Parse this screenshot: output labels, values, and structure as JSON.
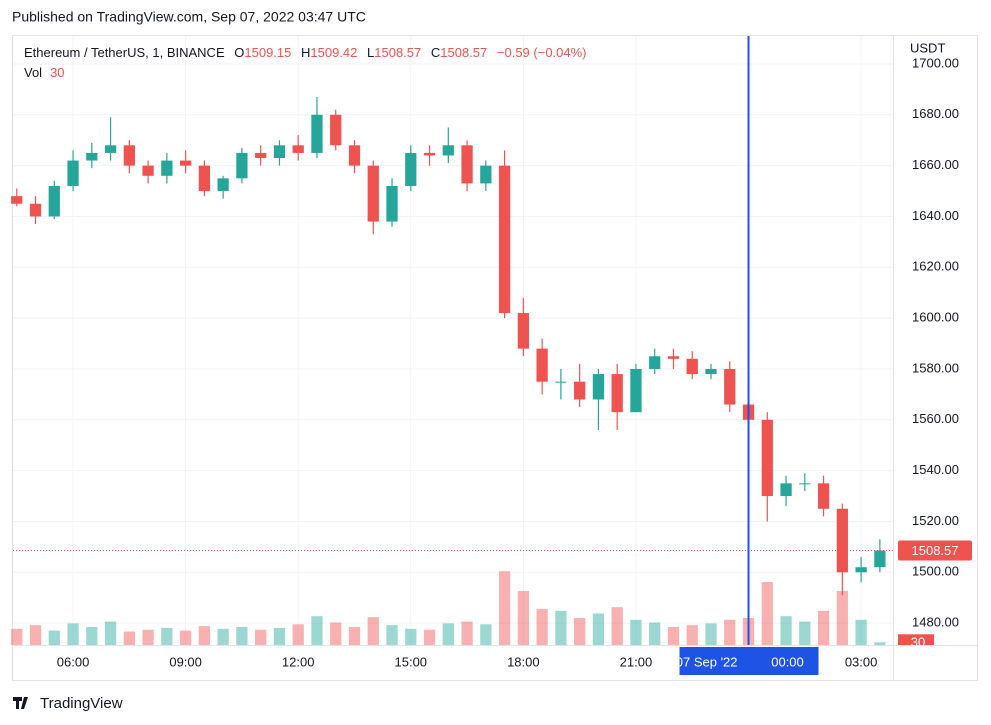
{
  "header": {
    "published": "Published on TradingView.com, Sep 07, 2022 03:47 UTC"
  },
  "footer": {
    "brand": "TradingView"
  },
  "chart_data": {
    "type": "candlestick",
    "symbol": "Ethereum / TetherUS, 1, BINANCE",
    "ohlc_legend": {
      "o_label": "O",
      "o": 1509.15,
      "h_label": "H",
      "h": 1509.42,
      "l_label": "L",
      "l": 1508.57,
      "c_label": "C",
      "c": 1508.57,
      "change": "−0.59 (−0.04%)"
    },
    "volume_label": "Vol",
    "volume_last": 30,
    "y_axis_title": "USDT",
    "last_price": 1508.57,
    "up_color": "#26a69a",
    "down_color": "#ef5350",
    "x": [
      4.5,
      5,
      5.5,
      6,
      6.5,
      7,
      7.5,
      8,
      8.5,
      9,
      9.5,
      10,
      10.5,
      11,
      11.5,
      12,
      12.5,
      13,
      13.5,
      14,
      14.5,
      15,
      15.5,
      16,
      16.5,
      17,
      17.5,
      18,
      18.5,
      19,
      19.5,
      20,
      20.5,
      21,
      21.5,
      22,
      22.5,
      23,
      23.5,
      24,
      24.5,
      25,
      25.5,
      26,
      26.5,
      27,
      27.5
    ],
    "open": [
      1648,
      1645,
      1640,
      1652,
      1662,
      1665,
      1668,
      1660,
      1656,
      1662,
      1660,
      1650,
      1655,
      1665,
      1663,
      1668,
      1665,
      1680,
      1668,
      1660,
      1638,
      1652,
      1665,
      1664,
      1668,
      1653,
      1660,
      1602,
      1588,
      1575,
      1575,
      1568,
      1578,
      1563,
      1580,
      1585,
      1584,
      1578,
      1580,
      1566,
      1560,
      1530,
      1535,
      1535,
      1525,
      1500,
      1502
    ],
    "high": [
      1651,
      1648,
      1654,
      1666,
      1669,
      1679,
      1670,
      1662,
      1665,
      1666,
      1662,
      1656,
      1667,
      1668,
      1670,
      1672,
      1687,
      1682,
      1670,
      1662,
      1655,
      1668,
      1668,
      1675,
      1670,
      1662,
      1666,
      1608,
      1592,
      1580,
      1582,
      1580,
      1582,
      1582,
      1588,
      1588,
      1587,
      1582,
      1583,
      1570,
      1563,
      1538,
      1539,
      1538,
      1527,
      1506,
      1513
    ],
    "low": [
      1644,
      1637,
      1639,
      1650,
      1659,
      1662,
      1657,
      1653,
      1653,
      1657,
      1648,
      1647,
      1653,
      1660,
      1660,
      1662,
      1663,
      1666,
      1657,
      1633,
      1636,
      1650,
      1660,
      1661,
      1650,
      1650,
      1600,
      1585,
      1570,
      1568,
      1565,
      1556,
      1556,
      1563,
      1578,
      1580,
      1576,
      1576,
      1563,
      1555,
      1520,
      1526,
      1532,
      1522,
      1491,
      1496,
      1500
    ],
    "close": [
      1645,
      1640,
      1652,
      1662,
      1665,
      1668,
      1660,
      1656,
      1662,
      1660,
      1650,
      1655,
      1665,
      1663,
      1668,
      1665,
      1680,
      1668,
      1660,
      1638,
      1652,
      1665,
      1664,
      1668,
      1653,
      1660,
      1602,
      1588,
      1575,
      1575,
      1568,
      1578,
      1563,
      1580,
      1585,
      1584,
      1578,
      1580,
      1566,
      1560,
      1530,
      1535,
      1535,
      1525,
      1500,
      1502,
      1508.57
    ],
    "volume": [
      180,
      220,
      160,
      240,
      200,
      260,
      150,
      170,
      190,
      160,
      210,
      180,
      200,
      170,
      190,
      230,
      320,
      250,
      200,
      310,
      220,
      180,
      170,
      240,
      260,
      230,
      820,
      600,
      400,
      380,
      300,
      350,
      420,
      280,
      250,
      200,
      220,
      240,
      280,
      300,
      700,
      320,
      260,
      380,
      600,
      280,
      30
    ],
    "volume_ylim": [
      0,
      1000
    ],
    "xlim": [
      4.4,
      27.85
    ],
    "xticks": [
      {
        "value": 6,
        "label": "06:00"
      },
      {
        "value": 9,
        "label": "09:00"
      },
      {
        "value": 12,
        "label": "12:00"
      },
      {
        "value": 15,
        "label": "15:00"
      },
      {
        "value": 18,
        "label": "18:00"
      },
      {
        "value": 21,
        "label": "21:00"
      },
      {
        "value": 24,
        "label": "00:00"
      },
      {
        "value": 27,
        "label": "03:00"
      }
    ],
    "ylim": [
      1471.4,
      1711
    ],
    "yticks": [
      {
        "value": 1480,
        "label": "1480.00"
      },
      {
        "value": 1500,
        "label": "1500.00"
      },
      {
        "value": 1520,
        "label": "1520.00"
      },
      {
        "value": 1540,
        "label": "1540.00"
      },
      {
        "value": 1560,
        "label": "1560.00"
      },
      {
        "value": 1580,
        "label": "1580.00"
      },
      {
        "value": 1600,
        "label": "1600.00"
      },
      {
        "value": 1620,
        "label": "1620.00"
      },
      {
        "value": 1640,
        "label": "1640.00"
      },
      {
        "value": 1660,
        "label": "1660.00"
      },
      {
        "value": 1680,
        "label": "1680.00"
      },
      {
        "value": 1700,
        "label": "1700.00"
      }
    ],
    "grid": true,
    "crosshair": {
      "x": 24,
      "date_label": "07 Sep '22",
      "color": "#1e53e5"
    }
  }
}
